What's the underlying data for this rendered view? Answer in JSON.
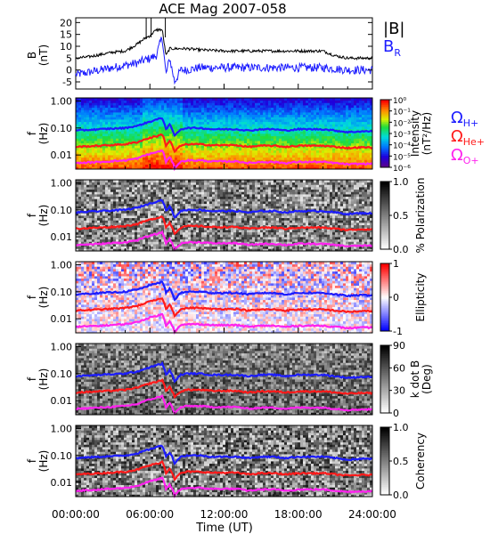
{
  "title": "ACE Mag 2007-058",
  "colors": {
    "black_trace": "#000000",
    "blue_trace": "#1c1cff",
    "red_trace": "#ff1a1a",
    "magenta_trace": "#ff22ee",
    "axis": "#000000"
  },
  "chart_data": [
    {
      "type": "line",
      "id": "b_field",
      "ylabel": "B\n(nT)",
      "ylim": [
        -8,
        22
      ],
      "y_ticks": [
        -5,
        0,
        5,
        10,
        15,
        20
      ],
      "x_ticks": [
        "00:00:00",
        "06:00:00",
        "12:00:00",
        "18:00:00",
        "24:00:00"
      ],
      "xlim_hours": [
        0,
        24
      ],
      "legend": {
        "placement": "right",
        "entries": [
          {
            "label": "|B|",
            "color": "#000000"
          },
          {
            "label": "B",
            "sub": "R",
            "color": "#1c1cff"
          }
        ]
      },
      "series": [
        {
          "name": "|B|",
          "color": "#000000",
          "x_hours": [
            0,
            1,
            2,
            3,
            4,
            5,
            5.5,
            6,
            6.3,
            6.6,
            7,
            7.3,
            7.6,
            8,
            9,
            10,
            12,
            14,
            16,
            18,
            20,
            21,
            22,
            23,
            24
          ],
          "values": [
            5,
            5.5,
            6.5,
            7.5,
            8,
            11,
            13,
            14.5,
            16,
            17,
            17,
            6,
            9,
            9,
            9,
            8.5,
            8,
            8,
            8,
            8,
            8,
            6,
            5,
            5,
            5
          ]
        },
        {
          "name": "B_R",
          "color": "#1c1cff",
          "x_hours": [
            0,
            1,
            2,
            3,
            4,
            5,
            6,
            6.5,
            7,
            7.3,
            7.6,
            8,
            8.5,
            9,
            10,
            12,
            14,
            16,
            18,
            20,
            22,
            24
          ],
          "values": [
            -2,
            -1,
            0,
            1,
            2,
            3,
            5,
            6,
            14,
            -2,
            5,
            -5,
            0,
            0,
            1,
            1,
            1,
            1,
            1,
            1,
            0,
            0
          ]
        }
      ]
    },
    {
      "type": "heatmap",
      "id": "intensity",
      "ylabel": "f\n(Hz)",
      "y_ticks": [
        "1.00",
        "0.10",
        "0.01"
      ],
      "x_ticks": [
        "00:00:00",
        "06:00:00",
        "12:00:00",
        "18:00:00",
        "24:00:00"
      ],
      "colorbar": {
        "label": "Intensity\n(nT²/Hz)",
        "tick_labels": [
          "10⁰",
          "10⁻¹",
          "10⁻²",
          "10⁻³",
          "10⁻⁴",
          "10⁻⁵",
          "10⁻⁶"
        ],
        "colormap": "rainbow"
      },
      "overlay_lines": [
        {
          "name": "Ω_H+",
          "color": "#1c1cff"
        },
        {
          "name": "Ω_He+",
          "color": "#ff1a1a"
        },
        {
          "name": "Ω_O+",
          "color": "#ff22ee"
        }
      ]
    },
    {
      "type": "heatmap",
      "id": "polarization",
      "ylabel": "f\n(Hz)",
      "y_ticks": [
        "1.00",
        "0.10",
        "0.01"
      ],
      "colorbar": {
        "label": "% Polarization",
        "tick_labels": [
          "1.0",
          "0.5",
          "0.0"
        ],
        "colormap": "grayscale"
      }
    },
    {
      "type": "heatmap",
      "id": "ellipticity",
      "ylabel": "f\n(Hz)",
      "y_ticks": [
        "1.00",
        "0.10",
        "0.01"
      ],
      "colorbar": {
        "label": "Ellipticity",
        "tick_labels": [
          "1",
          "0",
          "-1"
        ],
        "colormap": "blue-white-red"
      }
    },
    {
      "type": "heatmap",
      "id": "kdotb",
      "ylabel": "f\n(Hz)",
      "y_ticks": [
        "1.00",
        "0.10",
        "0.01"
      ],
      "colorbar": {
        "label": "k dot B\n(Deg)",
        "tick_labels": [
          "90",
          "60",
          "30",
          "0"
        ],
        "colormap": "grayscale"
      }
    },
    {
      "type": "heatmap",
      "id": "coherency",
      "ylabel": "f\n(Hz)",
      "y_ticks": [
        "1.00",
        "0.10",
        "0.01"
      ],
      "colorbar": {
        "label": "Coherency",
        "tick_labels": [
          "1.0",
          "0.5",
          "0.0"
        ],
        "colormap": "grayscale"
      }
    }
  ],
  "gyro_lines": {
    "x_hours": [
      0,
      2,
      4,
      5,
      6,
      6.3,
      6.6,
      7,
      7.3,
      7.6,
      8,
      8.5,
      9,
      10,
      11,
      12,
      13,
      14,
      15,
      16,
      17,
      18,
      19,
      20,
      21,
      22,
      23,
      24
    ],
    "H_plus_hz": [
      0.08,
      0.09,
      0.1,
      0.12,
      0.17,
      0.19,
      0.21,
      0.23,
      0.09,
      0.13,
      0.05,
      0.09,
      0.1,
      0.1,
      0.09,
      0.09,
      0.09,
      0.08,
      0.09,
      0.09,
      0.08,
      0.09,
      0.09,
      0.09,
      0.08,
      0.07,
      0.075,
      0.075
    ],
    "He_plus_hz": [
      0.02,
      0.022,
      0.025,
      0.03,
      0.043,
      0.047,
      0.05,
      0.058,
      0.022,
      0.033,
      0.013,
      0.022,
      0.025,
      0.025,
      0.023,
      0.023,
      0.023,
      0.02,
      0.022,
      0.022,
      0.02,
      0.022,
      0.022,
      0.022,
      0.02,
      0.018,
      0.019,
      0.019
    ],
    "O_plus_hz": [
      0.005,
      0.0055,
      0.0063,
      0.0075,
      0.011,
      0.012,
      0.013,
      0.0145,
      0.0056,
      0.0082,
      0.0033,
      0.0056,
      0.0063,
      0.0063,
      0.0058,
      0.0058,
      0.0058,
      0.005,
      0.0055,
      0.0055,
      0.005,
      0.0055,
      0.0055,
      0.0055,
      0.005,
      0.0045,
      0.0047,
      0.0047
    ]
  },
  "x_axis": {
    "label": "Time (UT)",
    "tick_labels": [
      "00:00:00",
      "06:00:00",
      "12:00:00",
      "18:00:00",
      "24:00:00"
    ]
  },
  "side_labels": {
    "omega_h": {
      "sym": "Ω",
      "sub": "H+"
    },
    "omega_he": {
      "sym": "Ω",
      "sub": "He+"
    },
    "omega_o": {
      "sym": "Ω",
      "sub": "O+"
    },
    "b_mag": "|B|",
    "b_r": {
      "sym": "B",
      "sub": "R"
    }
  }
}
